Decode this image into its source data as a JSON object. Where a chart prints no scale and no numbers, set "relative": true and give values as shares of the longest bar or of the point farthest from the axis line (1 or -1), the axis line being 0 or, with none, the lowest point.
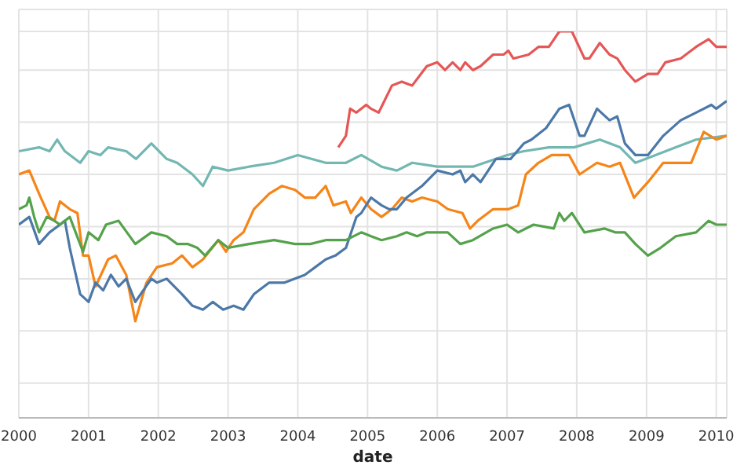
{
  "chart_data": {
    "type": "line",
    "xlabel": "date",
    "relative": true,
    "grid": true,
    "xlim": [
      2000,
      2010.15
    ],
    "xticks": [
      2000,
      2001,
      2002,
      2003,
      2004,
      2005,
      2006,
      2007,
      2008,
      2009,
      2010
    ],
    "tick_labels": "x",
    "series": [
      {
        "color": "#72b7b2",
        "x": [
          2000,
          2000.29,
          2000.44,
          2000.55,
          2000.66,
          2000.88,
          2001,
          2001.17,
          2001.28,
          2001.54,
          2001.68,
          2001.9,
          2002.12,
          2002.27,
          2002.49,
          2002.64,
          2002.78,
          2003,
          2003.3,
          2003.66,
          2004,
          2004.4,
          2004.69,
          2004.91,
          2005.2,
          2005.42,
          2005.64,
          2006,
          2006.51,
          2007,
          2007.24,
          2007.6,
          2007.96,
          2008.33,
          2008.62,
          2008.84,
          2008.99,
          2009.42,
          2009.71,
          2010.15
        ],
        "values": [
          0.69,
          0.7,
          0.69,
          0.72,
          0.69,
          0.66,
          0.69,
          0.68,
          0.7,
          0.69,
          0.67,
          0.71,
          0.67,
          0.66,
          0.63,
          0.6,
          0.65,
          0.64,
          0.65,
          0.66,
          0.68,
          0.66,
          0.66,
          0.68,
          0.65,
          0.64,
          0.66,
          0.65,
          0.65,
          0.68,
          0.69,
          0.7,
          0.7,
          0.72,
          0.7,
          0.66,
          0.67,
          0.7,
          0.72,
          0.73
        ]
      },
      {
        "color": "#f58518",
        "x": [
          2000,
          2000.15,
          2000.29,
          2000.44,
          2000.51,
          2000.59,
          2000.73,
          2000.84,
          2000.92,
          2001,
          2001.1,
          2001.28,
          2001.39,
          2001.54,
          2001.67,
          2001.83,
          2001.98,
          2002.2,
          2002.34,
          2002.49,
          2002.64,
          2002.86,
          2002.97,
          2003.08,
          2003.22,
          2003.37,
          2003.59,
          2003.77,
          2003.96,
          2004.1,
          2004.25,
          2004.4,
          2004.51,
          2004.69,
          2004.76,
          2004.91,
          2005.05,
          2005.2,
          2005.35,
          2005.49,
          2005.64,
          2005.78,
          2006,
          2006.15,
          2006.36,
          2006.47,
          2006.58,
          2006.8,
          2007.02,
          2007.16,
          2007.27,
          2007.45,
          2007.64,
          2007.89,
          2008.04,
          2008.29,
          2008.47,
          2008.62,
          2008.82,
          2009.02,
          2009.24,
          2009.49,
          2009.64,
          2009.82,
          2010,
          2010.15
        ],
        "values": [
          0.63,
          0.64,
          0.58,
          0.52,
          0.51,
          0.56,
          0.54,
          0.53,
          0.42,
          0.42,
          0.34,
          0.41,
          0.42,
          0.37,
          0.25,
          0.35,
          0.39,
          0.4,
          0.42,
          0.39,
          0.41,
          0.46,
          0.43,
          0.46,
          0.48,
          0.54,
          0.58,
          0.6,
          0.59,
          0.57,
          0.57,
          0.6,
          0.55,
          0.56,
          0.53,
          0.57,
          0.54,
          0.52,
          0.54,
          0.57,
          0.56,
          0.57,
          0.56,
          0.54,
          0.53,
          0.49,
          0.51,
          0.54,
          0.54,
          0.55,
          0.63,
          0.66,
          0.68,
          0.68,
          0.63,
          0.66,
          0.65,
          0.66,
          0.57,
          0.61,
          0.66,
          0.66,
          0.66,
          0.74,
          0.72,
          0.73
        ]
      },
      {
        "color": "#4c78a8",
        "x": [
          2000,
          2000.15,
          2000.29,
          2000.44,
          2000.59,
          2000.66,
          2000.73,
          2000.88,
          2001,
          2001.1,
          2001.21,
          2001.32,
          2001.43,
          2001.54,
          2001.67,
          2001.9,
          2001.98,
          2002.12,
          2002.34,
          2002.49,
          2002.64,
          2002.78,
          2002.93,
          2003.08,
          2003.22,
          2003.37,
          2003.59,
          2003.81,
          2004.1,
          2004.25,
          2004.4,
          2004.54,
          2004.69,
          2004.84,
          2004.91,
          2005.05,
          2005.2,
          2005.31,
          2005.42,
          2005.56,
          2005.78,
          2006,
          2006.22,
          2006.33,
          2006.4,
          2006.51,
          2006.62,
          2006.84,
          2007.05,
          2007.24,
          2007.35,
          2007.56,
          2007.75,
          2007.89,
          2008.04,
          2008.11,
          2008.29,
          2008.47,
          2008.58,
          2008.69,
          2008.84,
          2009.02,
          2009.24,
          2009.49,
          2009.71,
          2009.93,
          2010,
          2010.15
        ],
        "values": [
          0.5,
          0.52,
          0.45,
          0.48,
          0.5,
          0.51,
          0.44,
          0.32,
          0.3,
          0.35,
          0.33,
          0.37,
          0.34,
          0.36,
          0.3,
          0.36,
          0.35,
          0.36,
          0.32,
          0.29,
          0.28,
          0.3,
          0.28,
          0.29,
          0.28,
          0.32,
          0.35,
          0.35,
          0.37,
          0.39,
          0.41,
          0.42,
          0.44,
          0.52,
          0.53,
          0.57,
          0.55,
          0.54,
          0.54,
          0.57,
          0.6,
          0.64,
          0.63,
          0.64,
          0.61,
          0.63,
          0.61,
          0.67,
          0.67,
          0.71,
          0.72,
          0.75,
          0.8,
          0.81,
          0.73,
          0.73,
          0.8,
          0.77,
          0.78,
          0.71,
          0.68,
          0.68,
          0.73,
          0.77,
          0.79,
          0.81,
          0.8,
          0.82
        ]
      },
      {
        "color": "#54a24b",
        "x": [
          2000,
          2000.11,
          2000.15,
          2000.22,
          2000.29,
          2000.4,
          2000.51,
          2000.59,
          2000.73,
          2000.92,
          2001,
          2001.14,
          2001.25,
          2001.43,
          2001.67,
          2001.9,
          2002.12,
          2002.27,
          2002.42,
          2002.56,
          2002.67,
          2002.86,
          2003,
          2003.3,
          2003.66,
          2003.96,
          2004.18,
          2004.4,
          2004.69,
          2004.91,
          2005.05,
          2005.2,
          2005.42,
          2005.56,
          2005.71,
          2005.85,
          2006,
          2006.15,
          2006.33,
          2006.51,
          2006.8,
          2007,
          2007.16,
          2007.38,
          2007.67,
          2007.75,
          2007.82,
          2007.93,
          2008.11,
          2008.4,
          2008.55,
          2008.69,
          2008.84,
          2009.02,
          2009.2,
          2009.42,
          2009.71,
          2009.89,
          2010,
          2010.15
        ],
        "values": [
          0.54,
          0.55,
          0.57,
          0.52,
          0.48,
          0.52,
          0.51,
          0.5,
          0.52,
          0.43,
          0.48,
          0.46,
          0.5,
          0.51,
          0.45,
          0.48,
          0.47,
          0.45,
          0.45,
          0.44,
          0.42,
          0.46,
          0.44,
          0.45,
          0.46,
          0.45,
          0.45,
          0.46,
          0.46,
          0.48,
          0.47,
          0.46,
          0.47,
          0.48,
          0.47,
          0.48,
          0.48,
          0.48,
          0.45,
          0.46,
          0.49,
          0.5,
          0.48,
          0.5,
          0.49,
          0.53,
          0.51,
          0.53,
          0.48,
          0.49,
          0.48,
          0.48,
          0.45,
          0.42,
          0.44,
          0.47,
          0.48,
          0.51,
          0.5,
          0.5
        ]
      },
      {
        "color": "#e45756",
        "x": [
          2004.58,
          2004.69,
          2004.75,
          2004.84,
          2004.98,
          2005.05,
          2005.16,
          2005.35,
          2005.49,
          2005.64,
          2005.85,
          2006,
          2006.11,
          2006.22,
          2006.33,
          2006.4,
          2006.51,
          2006.62,
          2006.8,
          2006.95,
          2007.02,
          2007.09,
          2007.31,
          2007.45,
          2007.6,
          2007.75,
          2007.93,
          2008.11,
          2008.18,
          2008.33,
          2008.47,
          2008.58,
          2008.69,
          2008.84,
          2009.02,
          2009.16,
          2009.27,
          2009.49,
          2009.71,
          2009.89,
          2010,
          2010.15
        ],
        "values": [
          0.7,
          0.73,
          0.8,
          0.79,
          0.81,
          0.8,
          0.79,
          0.86,
          0.87,
          0.86,
          0.91,
          0.92,
          0.9,
          0.92,
          0.9,
          0.92,
          0.9,
          0.91,
          0.94,
          0.94,
          0.95,
          0.93,
          0.94,
          0.96,
          0.96,
          1,
          1,
          0.93,
          0.93,
          0.97,
          0.94,
          0.93,
          0.9,
          0.87,
          0.89,
          0.89,
          0.92,
          0.93,
          0.96,
          0.98,
          0.96,
          0.96
        ]
      }
    ]
  }
}
